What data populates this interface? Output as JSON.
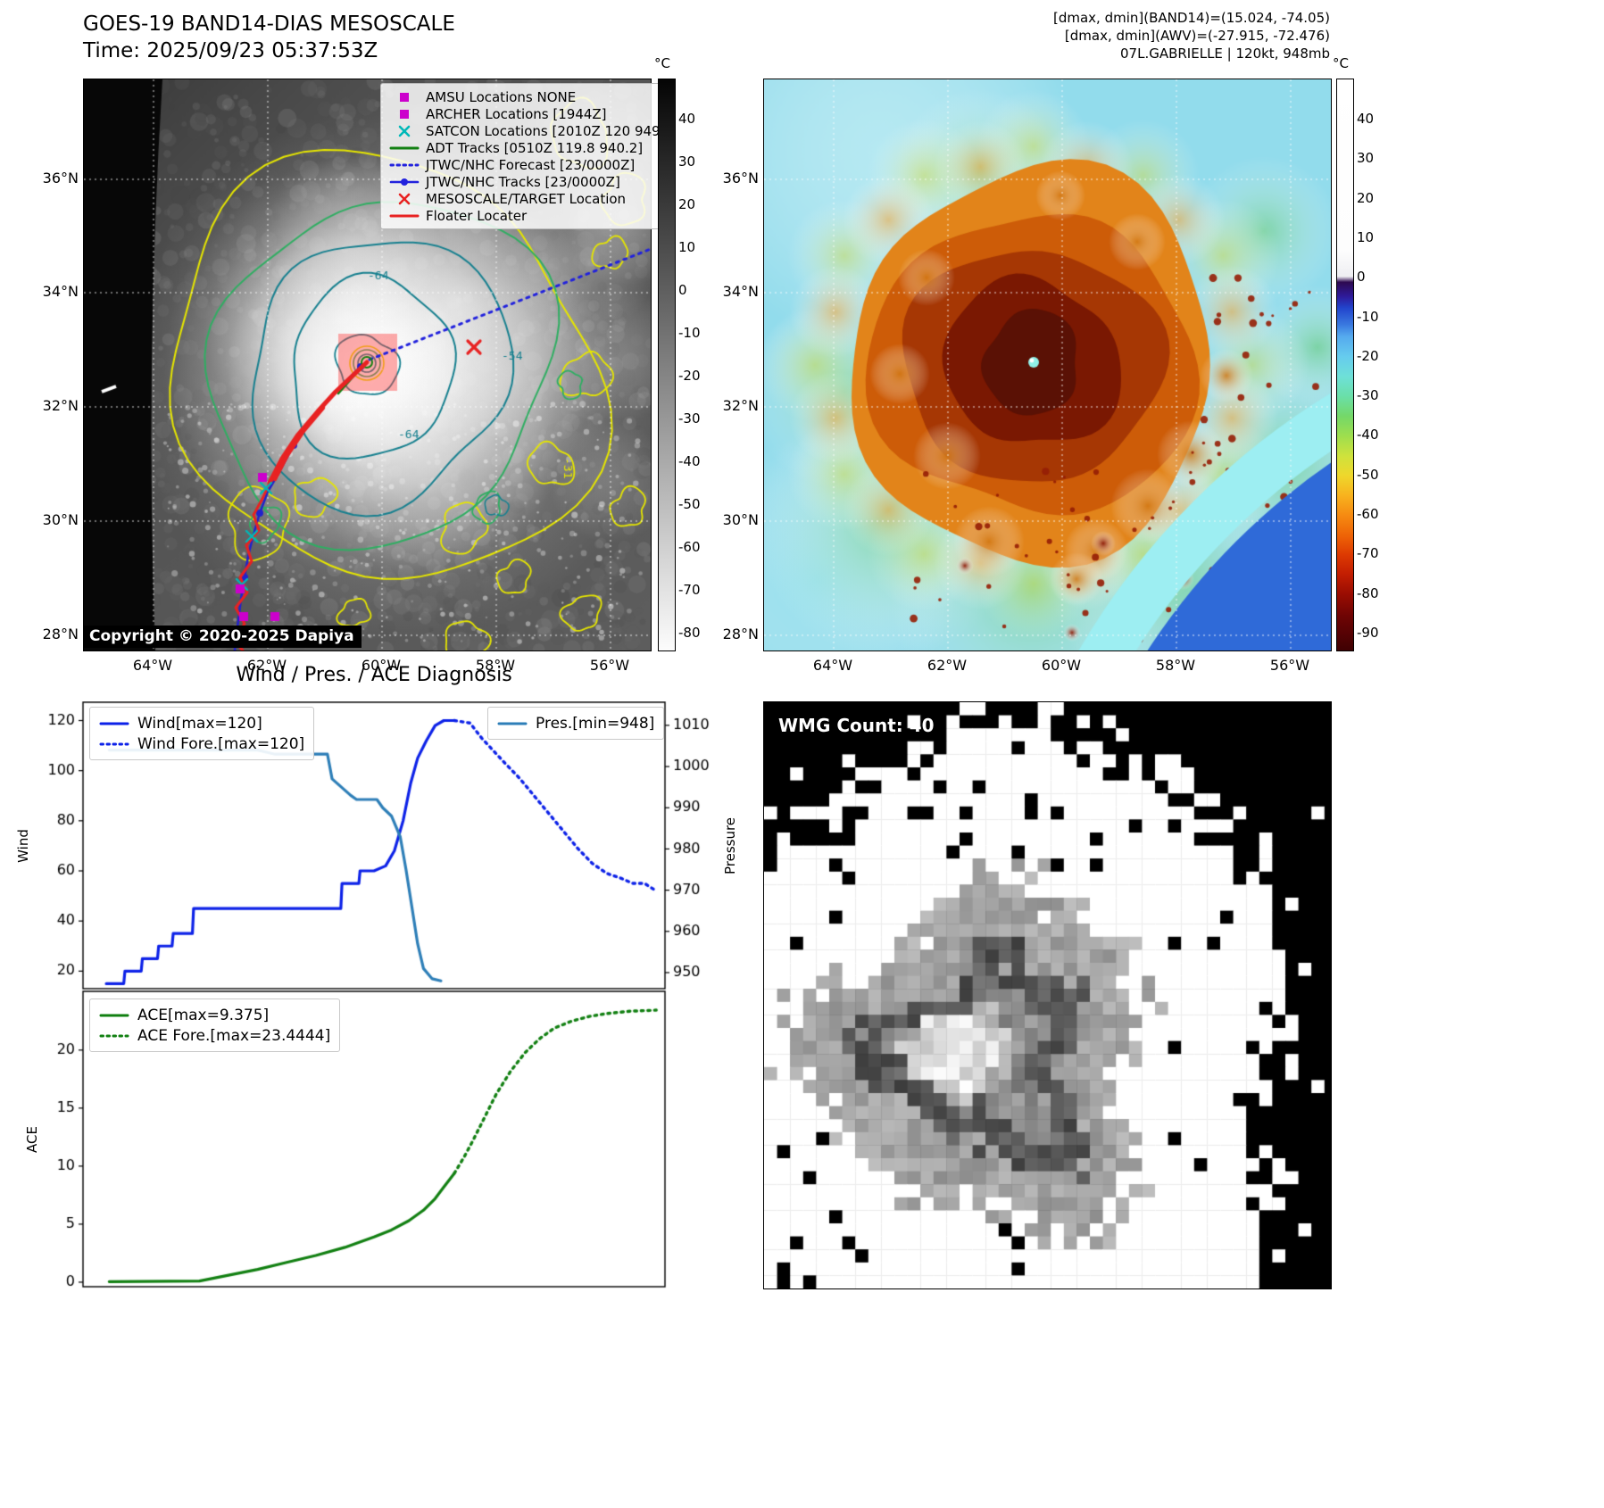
{
  "colors": {
    "wind_line": "#0d22e8",
    "pressure_line": "#2e7fb8",
    "ace_line": "#128012",
    "forecast_blue": "#2222dd",
    "track_red": "#e82222",
    "marker_magenta": "#cc00cc",
    "marker_cyan": "#00b8b8",
    "contour_yellow": "#e6e600",
    "contour_green": "#2fae62",
    "contour_teal": "#17808f"
  },
  "panel_tl": {
    "title": "GOES-19 BAND14-DIAS MESOSCALE",
    "subtitle": "Time: 2025/09/23 05:37:53Z",
    "copyright": "Copyright © 2020-2025 Dapiya",
    "legend": [
      {
        "label": "AMSU Locations NONE",
        "marker": "square",
        "color": "#cc00cc"
      },
      {
        "label": "ARCHER Locations [1944Z]",
        "marker": "square",
        "color": "#cc00cc"
      },
      {
        "label": "SATCON Locations [2010Z 120 949]",
        "marker": "x",
        "color": "#00b8b8"
      },
      {
        "label": "ADT Tracks [0510Z 119.8 940.2]",
        "marker": "line",
        "color": "#128012"
      },
      {
        "label": "JTWC/NHC Forecast [23/0000Z]",
        "marker": "dotted",
        "color": "#2222dd"
      },
      {
        "label": "JTWC/NHC Tracks [23/0000Z]",
        "marker": "line-dot",
        "color": "#2222dd"
      },
      {
        "label": "MESOSCALE/TARGET Location",
        "marker": "x",
        "color": "#e82222"
      },
      {
        "label": "Floater Locater",
        "marker": "line",
        "color": "#e82222"
      }
    ],
    "lat_ticks": [
      "36°N",
      "34°N",
      "32°N",
      "30°N",
      "28°N"
    ],
    "lon_ticks": [
      "64°W",
      "62°W",
      "60°W",
      "58°W",
      "56°W"
    ],
    "contour_labels": [
      "-64",
      "-64",
      "-54",
      "-31"
    ],
    "colorbar": {
      "unit": "°C",
      "ticks": [
        "40",
        "30",
        "20",
        "10",
        "0",
        "-10",
        "-20",
        "-30",
        "-40",
        "-50",
        "-60",
        "-70",
        "-80"
      ]
    }
  },
  "panel_tr": {
    "header_lines": [
      "[dmax, dmin](BAND14)=(15.024, -74.05)",
      "[dmax, dmin](AWV)=(-27.915, -72.476)",
      "07L.GABRIELLE | 120kt, 948mb"
    ],
    "lat_ticks": [
      "36°N",
      "34°N",
      "32°N",
      "30°N",
      "28°N"
    ],
    "lon_ticks": [
      "64°W",
      "62°W",
      "60°W",
      "58°W",
      "56°W"
    ],
    "colorbar": {
      "unit": "°C",
      "ticks": [
        "40",
        "30",
        "20",
        "10",
        "0",
        "-10",
        "-20",
        "-30",
        "-40",
        "-50",
        "-60",
        "-70",
        "-80",
        "-90"
      ]
    }
  },
  "charts": {
    "title": "Wind / Pres. / ACE Diagnosis"
  },
  "chart_data": [
    {
      "type": "line",
      "title": "Wind / Pres. / ACE Diagnosis",
      "xlabel": "",
      "ylabel": "Wind",
      "y2label": "Pressure",
      "ylim": [
        13,
        127.3
      ],
      "y2lim": [
        946.1,
        1015.6
      ],
      "yticks": [
        20,
        40,
        60,
        80,
        100,
        120
      ],
      "y2ticks": [
        950,
        960,
        970,
        980,
        990,
        1000,
        1010
      ],
      "grid": false,
      "legend_position": "upper-left and upper-right",
      "series": [
        {
          "name": "Wind[max=120]",
          "axis": "y",
          "style": "solid",
          "color": "#0d22e8",
          "points": [
            [
              0.04,
              15
            ],
            [
              0.07,
              15
            ],
            [
              0.072,
              20
            ],
            [
              0.1,
              20
            ],
            [
              0.102,
              25
            ],
            [
              0.128,
              25
            ],
            [
              0.13,
              30
            ],
            [
              0.153,
              30
            ],
            [
              0.155,
              35
            ],
            [
              0.188,
              35
            ],
            [
              0.19,
              45
            ],
            [
              0.443,
              45
            ],
            [
              0.445,
              55
            ],
            [
              0.474,
              55
            ],
            [
              0.476,
              60
            ],
            [
              0.5,
              60
            ],
            [
              0.52,
              62
            ],
            [
              0.535,
              68
            ],
            [
              0.55,
              80
            ],
            [
              0.563,
              95
            ],
            [
              0.575,
              105
            ],
            [
              0.59,
              112
            ],
            [
              0.605,
              118
            ],
            [
              0.62,
              120
            ],
            [
              0.638,
              120
            ]
          ]
        },
        {
          "name": "Wind Fore.[max=120]",
          "axis": "y",
          "style": "dotted",
          "color": "#0d22e8",
          "points": [
            [
              0.638,
              120
            ],
            [
              0.665,
              119
            ],
            [
              0.685,
              113
            ],
            [
              0.705,
              108
            ],
            [
              0.725,
              103
            ],
            [
              0.75,
              97
            ],
            [
              0.775,
              90
            ],
            [
              0.8,
              83
            ],
            [
              0.825,
              76
            ],
            [
              0.85,
              69
            ],
            [
              0.875,
              63
            ],
            [
              0.9,
              59
            ],
            [
              0.925,
              57
            ],
            [
              0.945,
              55
            ],
            [
              0.965,
              55
            ],
            [
              0.985,
              52
            ]
          ]
        },
        {
          "name": "Pres.[min=948]",
          "axis": "y2",
          "style": "solid",
          "color": "#2e7fb8",
          "points": [
            [
              0.045,
              1004
            ],
            [
              0.3,
              1004
            ],
            [
              0.33,
              1003
            ],
            [
              0.42,
              1003
            ],
            [
              0.428,
              997
            ],
            [
              0.46,
              993
            ],
            [
              0.47,
              992
            ],
            [
              0.505,
              992
            ],
            [
              0.515,
              990
            ],
            [
              0.53,
              988
            ],
            [
              0.545,
              983
            ],
            [
              0.555,
              975
            ],
            [
              0.565,
              966
            ],
            [
              0.575,
              957
            ],
            [
              0.585,
              951
            ],
            [
              0.6,
              948.5
            ],
            [
              0.615,
              948
            ]
          ]
        }
      ]
    },
    {
      "type": "line",
      "title": "",
      "xlabel": "",
      "ylabel": "ACE",
      "ylim": [
        -0.39,
        25.06
      ],
      "yticks": [
        0,
        5,
        10,
        15,
        20
      ],
      "grid": false,
      "legend_position": "upper-left",
      "series": [
        {
          "name": "ACE[max=9.375]",
          "axis": "y",
          "style": "solid",
          "color": "#128012",
          "points": [
            [
              0.045,
              0.05
            ],
            [
              0.2,
              0.1
            ],
            [
              0.25,
              0.6
            ],
            [
              0.3,
              1.1
            ],
            [
              0.35,
              1.7
            ],
            [
              0.4,
              2.3
            ],
            [
              0.45,
              3.0
            ],
            [
              0.5,
              3.9
            ],
            [
              0.53,
              4.5
            ],
            [
              0.56,
              5.3
            ],
            [
              0.585,
              6.2
            ],
            [
              0.605,
              7.2
            ],
            [
              0.62,
              8.2
            ],
            [
              0.638,
              9.375
            ]
          ]
        },
        {
          "name": "ACE Fore.[max=23.4444]",
          "axis": "y",
          "style": "dotted",
          "color": "#128012",
          "points": [
            [
              0.638,
              9.375
            ],
            [
              0.655,
              10.8
            ],
            [
              0.67,
              12.2
            ],
            [
              0.69,
              14.2
            ],
            [
              0.71,
              16.2
            ],
            [
              0.735,
              18.2
            ],
            [
              0.76,
              19.8
            ],
            [
              0.785,
              21.0
            ],
            [
              0.81,
              21.9
            ],
            [
              0.84,
              22.5
            ],
            [
              0.87,
              22.9
            ],
            [
              0.9,
              23.15
            ],
            [
              0.94,
              23.35
            ],
            [
              0.985,
              23.44
            ]
          ]
        }
      ]
    }
  ],
  "panel_br": {
    "title": "WMG Count: 40"
  }
}
